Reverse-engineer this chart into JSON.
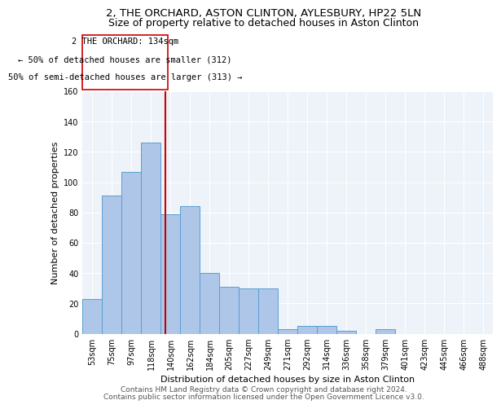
{
  "title1": "2, THE ORCHARD, ASTON CLINTON, AYLESBURY, HP22 5LN",
  "title2": "Size of property relative to detached houses in Aston Clinton",
  "xlabel": "Distribution of detached houses by size in Aston Clinton",
  "ylabel": "Number of detached properties",
  "categories": [
    "53sqm",
    "75sqm",
    "97sqm",
    "118sqm",
    "140sqm",
    "162sqm",
    "184sqm",
    "205sqm",
    "227sqm",
    "249sqm",
    "271sqm",
    "292sqm",
    "314sqm",
    "336sqm",
    "358sqm",
    "379sqm",
    "401sqm",
    "423sqm",
    "445sqm",
    "466sqm",
    "488sqm"
  ],
  "values": [
    23,
    91,
    107,
    126,
    79,
    84,
    40,
    31,
    30,
    30,
    3,
    5,
    5,
    2,
    0,
    3,
    0,
    0,
    0,
    0,
    0
  ],
  "bar_color": "#aec6e8",
  "bar_edge_color": "#5a9fd4",
  "bg_color": "#eef2f9",
  "grid_color": "#ffffff",
  "annotation_text1": "2 THE ORCHARD: 134sqm",
  "annotation_text2": "← 50% of detached houses are smaller (312)",
  "annotation_text3": "50% of semi-detached houses are larger (313) →",
  "vline_color": "#cc0000",
  "annotation_box_color": "#cc0000",
  "footer1": "Contains HM Land Registry data © Crown copyright and database right 2024.",
  "footer2": "Contains public sector information licensed under the Open Government Licence v3.0.",
  "ylim": [
    0,
    160
  ],
  "title1_fontsize": 9.5,
  "title2_fontsize": 9,
  "ylabel_fontsize": 8,
  "xlabel_fontsize": 8,
  "tick_fontsize": 7,
  "footer_fontsize": 6.5,
  "vline_x_index": 3.73
}
